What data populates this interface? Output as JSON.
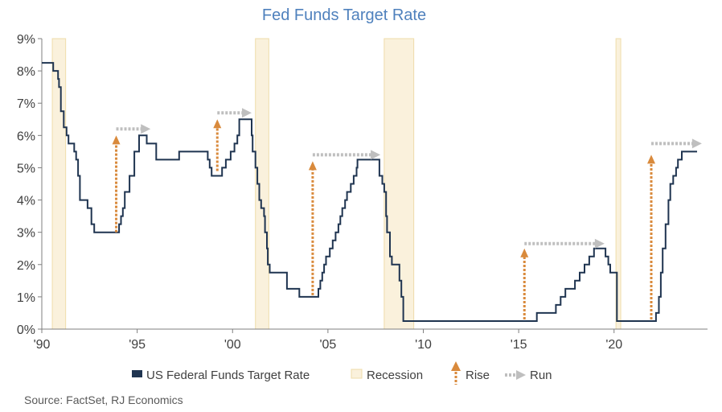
{
  "chart_data": {
    "type": "line",
    "title": "Fed Funds Target Rate",
    "xlabel": "",
    "ylabel": "",
    "xlim": [
      1990,
      2024.9
    ],
    "ylim": [
      0,
      9
    ],
    "x_ticks": [
      {
        "value": 1990,
        "label": "'90"
      },
      {
        "value": 1995,
        "label": "'95"
      },
      {
        "value": 2000,
        "label": "'00"
      },
      {
        "value": 2005,
        "label": "'05"
      },
      {
        "value": 2010,
        "label": "'10"
      },
      {
        "value": 2015,
        "label": "'15"
      },
      {
        "value": 2020,
        "label": "'20"
      }
    ],
    "y_ticks": [
      {
        "value": 0,
        "label": "0%"
      },
      {
        "value": 1,
        "label": "1%"
      },
      {
        "value": 2,
        "label": "2%"
      },
      {
        "value": 3,
        "label": "3%"
      },
      {
        "value": 4,
        "label": "4%"
      },
      {
        "value": 5,
        "label": "5%"
      },
      {
        "value": 6,
        "label": "6%"
      },
      {
        "value": 7,
        "label": "7%"
      },
      {
        "value": 8,
        "label": "8%"
      },
      {
        "value": 9,
        "label": "9%"
      }
    ],
    "grid": false,
    "legend_position": "bottom",
    "colors": {
      "rate": "#1f3450",
      "recession": "#faf1dc",
      "recession_border": "#efdcaa",
      "rise": "#d98a3c",
      "run": "#bfbfbf",
      "title": "#4f81bd"
    },
    "series": [
      {
        "name": "US Federal Funds Target Rate",
        "step": true,
        "points": [
          [
            1990.0,
            8.25
          ],
          [
            1990.55,
            8.25
          ],
          [
            1990.6,
            8.0
          ],
          [
            1990.85,
            7.75
          ],
          [
            1990.9,
            7.5
          ],
          [
            1991.0,
            6.75
          ],
          [
            1991.15,
            6.25
          ],
          [
            1991.3,
            6.0
          ],
          [
            1991.4,
            5.75
          ],
          [
            1991.7,
            5.5
          ],
          [
            1991.8,
            5.25
          ],
          [
            1991.9,
            4.75
          ],
          [
            1992.0,
            4.0
          ],
          [
            1992.4,
            3.75
          ],
          [
            1992.6,
            3.25
          ],
          [
            1992.75,
            3.0
          ],
          [
            1994.05,
            3.25
          ],
          [
            1994.15,
            3.5
          ],
          [
            1994.25,
            3.75
          ],
          [
            1994.35,
            4.25
          ],
          [
            1994.6,
            4.75
          ],
          [
            1994.85,
            5.5
          ],
          [
            1995.1,
            6.0
          ],
          [
            1995.5,
            5.75
          ],
          [
            1996.0,
            5.25
          ],
          [
            1997.2,
            5.5
          ],
          [
            1998.7,
            5.25
          ],
          [
            1998.8,
            5.0
          ],
          [
            1998.9,
            4.75
          ],
          [
            1999.45,
            5.0
          ],
          [
            1999.65,
            5.25
          ],
          [
            1999.9,
            5.5
          ],
          [
            2000.1,
            5.75
          ],
          [
            2000.25,
            6.0
          ],
          [
            2000.35,
            6.5
          ],
          [
            2001.0,
            6.0
          ],
          [
            2001.05,
            5.5
          ],
          [
            2001.2,
            5.0
          ],
          [
            2001.3,
            4.5
          ],
          [
            2001.4,
            4.0
          ],
          [
            2001.5,
            3.75
          ],
          [
            2001.65,
            3.5
          ],
          [
            2001.7,
            3.0
          ],
          [
            2001.8,
            2.5
          ],
          [
            2001.85,
            2.0
          ],
          [
            2001.95,
            1.75
          ],
          [
            2002.85,
            1.25
          ],
          [
            2003.5,
            1.0
          ],
          [
            2004.5,
            1.25
          ],
          [
            2004.6,
            1.5
          ],
          [
            2004.7,
            1.75
          ],
          [
            2004.8,
            2.0
          ],
          [
            2004.9,
            2.25
          ],
          [
            2005.1,
            2.5
          ],
          [
            2005.25,
            2.75
          ],
          [
            2005.4,
            3.0
          ],
          [
            2005.55,
            3.25
          ],
          [
            2005.65,
            3.5
          ],
          [
            2005.75,
            3.75
          ],
          [
            2005.9,
            4.0
          ],
          [
            2006.0,
            4.25
          ],
          [
            2006.2,
            4.5
          ],
          [
            2006.35,
            4.75
          ],
          [
            2006.5,
            5.0
          ],
          [
            2006.55,
            5.25
          ],
          [
            2007.7,
            4.75
          ],
          [
            2007.85,
            4.5
          ],
          [
            2007.95,
            4.25
          ],
          [
            2008.05,
            3.5
          ],
          [
            2008.1,
            3.0
          ],
          [
            2008.25,
            2.25
          ],
          [
            2008.35,
            2.0
          ],
          [
            2008.75,
            1.5
          ],
          [
            2008.85,
            1.0
          ],
          [
            2008.95,
            0.25
          ],
          [
            2015.95,
            0.5
          ],
          [
            2016.95,
            0.75
          ],
          [
            2017.2,
            1.0
          ],
          [
            2017.45,
            1.25
          ],
          [
            2017.95,
            1.5
          ],
          [
            2018.2,
            1.75
          ],
          [
            2018.45,
            2.0
          ],
          [
            2018.7,
            2.25
          ],
          [
            2018.95,
            2.5
          ],
          [
            2019.55,
            2.25
          ],
          [
            2019.7,
            2.0
          ],
          [
            2019.8,
            1.75
          ],
          [
            2020.15,
            0.25
          ],
          [
            2022.2,
            0.5
          ],
          [
            2022.35,
            1.0
          ],
          [
            2022.45,
            1.75
          ],
          [
            2022.55,
            2.5
          ],
          [
            2022.7,
            3.25
          ],
          [
            2022.85,
            4.0
          ],
          [
            2022.95,
            4.5
          ],
          [
            2023.1,
            4.75
          ],
          [
            2023.25,
            5.0
          ],
          [
            2023.35,
            5.25
          ],
          [
            2023.55,
            5.5
          ],
          [
            2024.35,
            5.5
          ]
        ]
      }
    ],
    "recessions": [
      [
        1990.55,
        1991.25
      ],
      [
        2001.2,
        2001.9
      ],
      [
        2007.95,
        2009.5
      ],
      [
        2020.1,
        2020.35
      ]
    ],
    "rises": [
      {
        "x": 1993.9,
        "from": 3.0,
        "to": 6.0
      },
      {
        "x": 1999.2,
        "from": 4.9,
        "to": 6.5
      },
      {
        "x": 2004.2,
        "from": 1.05,
        "to": 5.2
      },
      {
        "x": 2015.3,
        "from": 0.3,
        "to": 2.5
      },
      {
        "x": 2021.95,
        "from": 0.3,
        "to": 5.4
      }
    ],
    "runs": [
      {
        "y": 6.2,
        "from": 1993.9,
        "to": 1995.7
      },
      {
        "y": 6.7,
        "from": 1999.2,
        "to": 2001.0
      },
      {
        "y": 5.4,
        "from": 2004.2,
        "to": 2007.75
      },
      {
        "y": 2.65,
        "from": 2015.3,
        "to": 2019.5
      },
      {
        "y": 5.75,
        "from": 2021.95,
        "to": 2024.6
      }
    ],
    "legend": {
      "rate": "US Federal Funds Target Rate",
      "recession": "Recession",
      "rise": "Rise",
      "run": "Run"
    },
    "source": "Source: FactSet, RJ Economics"
  }
}
